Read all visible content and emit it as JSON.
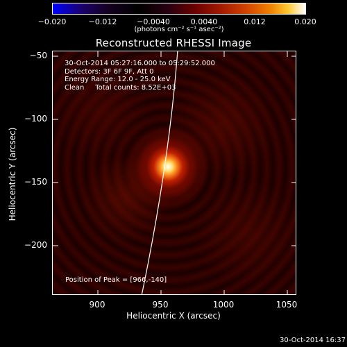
{
  "colorbar": {
    "tick_labels": [
      "−0.020",
      "−0.012",
      "−0.0040",
      "0.0040",
      "0.012",
      "0.020"
    ],
    "units": "(photons cm⁻² s⁻¹ asec⁻²)"
  },
  "title": "Reconstructed RHESSI Image",
  "info": {
    "time_range": "30-Oct-2014 05:27:16.000 to 05:29:52.000",
    "detectors": "Detectors: 3F 6F 9F, Att 0",
    "energy": "Energy Range: 12.0 - 25.0 keV",
    "clean": "Clean     Total counts: 8.52E+03"
  },
  "peak_label": "Position of Peak = [966,-140]",
  "axes": {
    "x_title": "Heliocentric X (arcsec)",
    "y_title": "Heliocentric Y (arcsec)",
    "x_ticks": [
      "900",
      "950",
      "1000",
      "1050"
    ],
    "y_ticks": [
      "−50",
      "−100",
      "−150",
      "−200"
    ]
  },
  "timestamp": "30-Oct-2014 16:37",
  "colors": {
    "background": "#000000",
    "foreground": "#ffffff",
    "colormap_low": "#0000ff",
    "colormap_high": "#ffffff"
  }
}
